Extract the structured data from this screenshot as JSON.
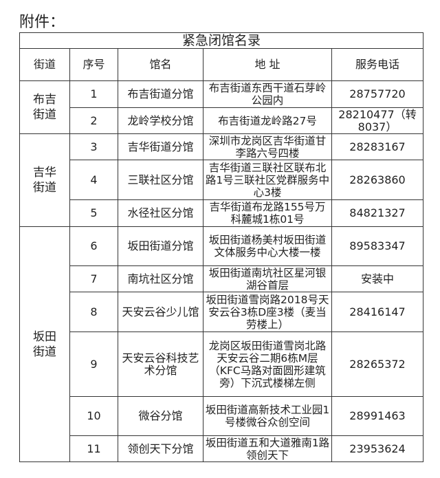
{
  "attachment_label": "附件：",
  "table_title": "紧急闭馆名录",
  "headers": [
    "街道",
    "序号",
    "馆名",
    "地 址",
    "服务电话"
  ],
  "groups": [
    {
      "street": "布吉\n街道",
      "rows": [
        {
          "no": "1",
          "name": "布吉街道分馆",
          "address": "布吉街道东西干道石芽岭公园内",
          "phone": "28757720"
        },
        {
          "no": "2",
          "name": "龙岭学校分馆",
          "address": "布吉街道龙岭路27号",
          "phone": "28210477（转8037）"
        }
      ]
    },
    {
      "street": "吉华\n街道",
      "rows": [
        {
          "no": "3",
          "name": "吉华街道分馆",
          "address": "深圳市龙岗区吉华街道甘李路六号四楼",
          "phone": "28283167"
        },
        {
          "no": "4",
          "name": "三联社区分馆",
          "address": "吉华街道三联社区联布北路1号三联社区党群服务中心3楼",
          "phone": "28263860"
        },
        {
          "no": "5",
          "name": "水径社区分馆",
          "address": "吉华街道布龙路155号万科麓城1栋01号",
          "phone": "84821327"
        }
      ]
    },
    {
      "street": "坂田\n街道",
      "rows": [
        {
          "no": "6",
          "name": "坂田街道分馆",
          "address": "坂田街道杨美村坂田街道文体服务中心大楼一楼",
          "phone": "89583347"
        },
        {
          "no": "7",
          "name": "南坑社区分馆",
          "address": "坂田街道南坑社区星河银湖谷首层",
          "phone": "安装中"
        },
        {
          "no": "8",
          "name": "天安云谷少儿馆",
          "address": "坂田街道雪岗路2018号天安云谷3栋D座3楼（麦当劳楼上）",
          "phone": "28416147"
        },
        {
          "no": "9",
          "name": "天安云谷科技艺术分馆",
          "address": "龙岗区坂田街道雪岗北路天安云谷二期6栋M层（KFC马路对面圆形建筑旁）下沉式楼梯左侧",
          "phone": "28265372"
        },
        {
          "no": "10",
          "name": "微谷分馆",
          "address": "坂田街道高新技术工业园1号楼微谷众创空间",
          "phone": "28991463"
        },
        {
          "no": "11",
          "name": "领创天下分馆",
          "address": "坂田街道五和大道雅南1路领创天下",
          "phone": "23953624"
        }
      ]
    }
  ]
}
